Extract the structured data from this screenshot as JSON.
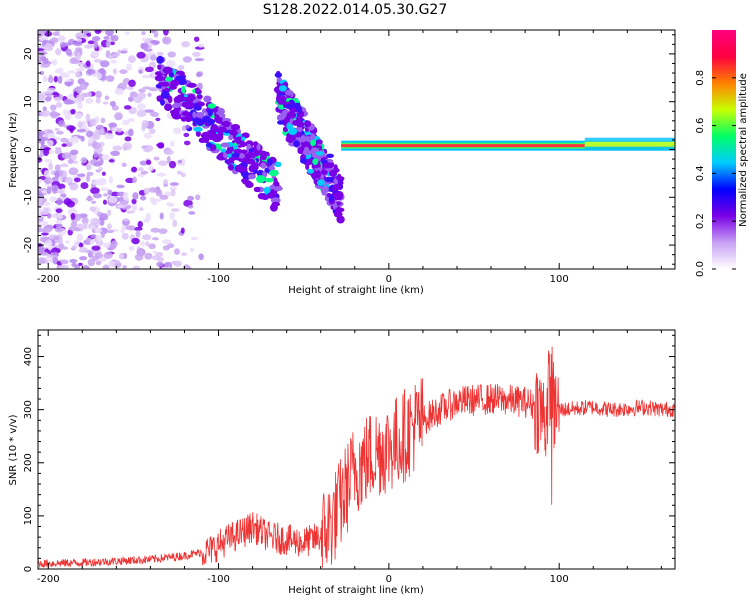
{
  "title": "S128.2022.014.05.30.G27",
  "chart_data": [
    {
      "type": "heatmap",
      "xlabel": "Height of straight line (km)",
      "ylabel": "Frequency (Hz)",
      "xlim": [
        -206,
        168
      ],
      "ylim": [
        -25,
        25
      ],
      "xticks": [
        -200,
        -100,
        0,
        100
      ],
      "yticks": [
        -20,
        -10,
        0,
        10,
        20
      ],
      "colorbar": {
        "label": "Normalized spectral amplitude",
        "range": [
          0.0,
          1.0
        ],
        "ticks": [
          0.0,
          0.2,
          0.4,
          0.6,
          0.8
        ],
        "colors": [
          "#ffffff",
          "#c8a0f5",
          "#7a00e6",
          "#0000ff",
          "#00ccff",
          "#00ff66",
          "#c8ff00",
          "#ff8000",
          "#ff0040",
          "#ff0080"
        ]
      },
      "features": {
        "scatter_region_x": [
          -206,
          -110
        ],
        "diagonal_band_1": {
          "x": [
            -135,
            -65
          ],
          "freq": [
            15,
            -8
          ]
        },
        "diagonal_band_2": {
          "x": [
            -65,
            -28
          ],
          "freq": [
            11,
            -10
          ]
        },
        "carrier_line": {
          "x": [
            -28,
            168
          ],
          "freq": 0.8
        }
      }
    },
    {
      "type": "line",
      "xlabel": "Height of straight line (km)",
      "ylabel": "SNR (10 * v/v)",
      "xlim": [
        -206,
        168
      ],
      "ylim": [
        0,
        450
      ],
      "xticks": [
        -200,
        -100,
        0,
        100
      ],
      "yticks": [
        0,
        100,
        200,
        300,
        400
      ],
      "color": "#ee3333",
      "series": [
        {
          "x": [
            -206,
            -180,
            -160,
            -140,
            -120,
            -105,
            -95,
            -85,
            -80,
            -70,
            -60,
            -50,
            -40,
            -35,
            -30,
            -25,
            -20,
            -15,
            -10,
            -5,
            0,
            5,
            10,
            15,
            20,
            30,
            40,
            50,
            60,
            70,
            80,
            88,
            92,
            95,
            97,
            100,
            110,
            120,
            130,
            140,
            150,
            160,
            168
          ],
          "values": [
            10,
            12,
            15,
            18,
            25,
            35,
            55,
            70,
            80,
            60,
            55,
            50,
            60,
            80,
            110,
            150,
            190,
            200,
            215,
            225,
            230,
            240,
            255,
            270,
            280,
            300,
            315,
            318,
            320,
            318,
            315,
            305,
            280,
            360,
            300,
            300,
            302,
            305,
            300,
            302,
            305,
            300,
            302
          ]
        }
      ]
    }
  ]
}
